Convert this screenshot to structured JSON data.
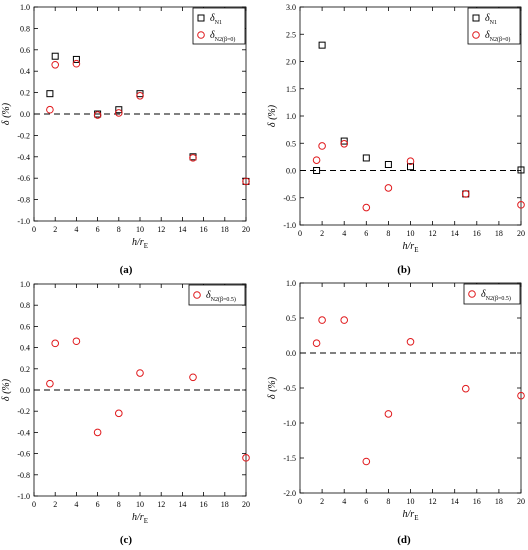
{
  "chart_data": [
    {
      "panel": "(a)",
      "type": "scatter",
      "xlabel": "h/r",
      "xlabel_sub": "E",
      "ylabel": "δ (%)",
      "xlim": [
        0,
        20
      ],
      "ylim": [
        -1.0,
        1.0
      ],
      "xticks": [
        "0",
        "2",
        "4",
        "6",
        "8",
        "10",
        "12",
        "14",
        "16",
        "18",
        "20"
      ],
      "yticks": [
        "-1.0",
        "-0.8",
        "-0.6",
        "-0.4",
        "-0.2",
        "0.0",
        "0.2",
        "0.4",
        "0.6",
        "0.8",
        "1.0"
      ],
      "reference_line_y": 0,
      "legend_position": "top-right",
      "series": [
        {
          "name": "δ",
          "name_sub": "N1",
          "marker": "square",
          "color": "#000000",
          "x": [
            1.5,
            2,
            4,
            6,
            8,
            10,
            15,
            20
          ],
          "y": [
            0.19,
            0.54,
            0.51,
            0.0,
            0.04,
            0.19,
            -0.4,
            -0.63
          ]
        },
        {
          "name": "δ",
          "name_sub": "N2(β=0)",
          "marker": "circle",
          "color": "#e0191c",
          "x": [
            1.5,
            2,
            4,
            6,
            8,
            10,
            15,
            20
          ],
          "y": [
            0.04,
            0.46,
            0.47,
            -0.01,
            0.01,
            0.17,
            -0.41,
            -0.63
          ]
        }
      ]
    },
    {
      "panel": "(b)",
      "type": "scatter",
      "xlabel": "h/r",
      "xlabel_sub": "E",
      "ylabel": "δ (%)",
      "xlim": [
        0,
        20
      ],
      "ylim": [
        -1.0,
        3.0
      ],
      "xticks": [
        "0",
        "2",
        "4",
        "6",
        "8",
        "10",
        "12",
        "14",
        "16",
        "18",
        "20"
      ],
      "yticks": [
        "-1.0",
        "-0.5",
        "0.0",
        "0.5",
        "1.0",
        "1.5",
        "2.0",
        "2.5",
        "3.0"
      ],
      "reference_line_y": 0,
      "legend_position": "top-right",
      "series": [
        {
          "name": "δ",
          "name_sub": "N1",
          "marker": "square",
          "color": "#000000",
          "x": [
            1.5,
            2,
            4,
            6,
            8,
            10,
            15,
            20
          ],
          "y": [
            0.0,
            2.3,
            0.54,
            0.23,
            0.11,
            0.07,
            -0.43,
            0.01
          ]
        },
        {
          "name": "δ",
          "name_sub": "N2(β=0)",
          "marker": "circle",
          "color": "#e0191c",
          "x": [
            1.5,
            2,
            4,
            6,
            8,
            10,
            15,
            20
          ],
          "y": [
            0.19,
            0.45,
            0.49,
            -0.68,
            -0.32,
            0.17,
            -0.43,
            -0.63
          ]
        }
      ]
    },
    {
      "panel": "(c)",
      "type": "scatter",
      "xlabel": "h/r",
      "xlabel_sub": "E",
      "ylabel": "δ (%)",
      "xlim": [
        0,
        20
      ],
      "ylim": [
        -1.0,
        1.0
      ],
      "xticks": [
        "0",
        "2",
        "4",
        "6",
        "8",
        "10",
        "12",
        "14",
        "16",
        "18",
        "20"
      ],
      "yticks": [
        "-1.0",
        "-0.8",
        "-0.6",
        "-0.4",
        "-0.2",
        "0.0",
        "0.2",
        "0.4",
        "0.6",
        "0.8",
        "1.0"
      ],
      "reference_line_y": 0,
      "legend_position": "top-right",
      "series": [
        {
          "name": "δ",
          "name_sub": "N2(β=0.5)",
          "marker": "circle",
          "color": "#e0191c",
          "x": [
            1.5,
            2,
            4,
            6,
            8,
            10,
            15,
            20
          ],
          "y": [
            0.06,
            0.44,
            0.46,
            -0.4,
            -0.22,
            0.16,
            0.12,
            -0.64
          ]
        }
      ]
    },
    {
      "panel": "(d)",
      "type": "scatter",
      "xlabel": "h/r",
      "xlabel_sub": "E",
      "ylabel": "δ (%)",
      "xlim": [
        0,
        20
      ],
      "ylim": [
        -2.0,
        1.0
      ],
      "xticks": [
        "0",
        "2",
        "4",
        "6",
        "8",
        "10",
        "12",
        "14",
        "16",
        "18",
        "20"
      ],
      "yticks": [
        "-2.0",
        "-1.5",
        "-1.0",
        "-0.5",
        "0.0",
        "0.5",
        "1.0"
      ],
      "reference_line_y": 0,
      "legend_position": "top-right",
      "series": [
        {
          "name": "δ",
          "name_sub": "N2(β=0.5)",
          "marker": "circle",
          "color": "#e0191c",
          "x": [
            1.5,
            2,
            4,
            6,
            8,
            10,
            15,
            20
          ],
          "y": [
            0.14,
            0.47,
            0.47,
            -1.55,
            -0.87,
            0.16,
            -0.51,
            -0.61
          ]
        }
      ]
    }
  ]
}
